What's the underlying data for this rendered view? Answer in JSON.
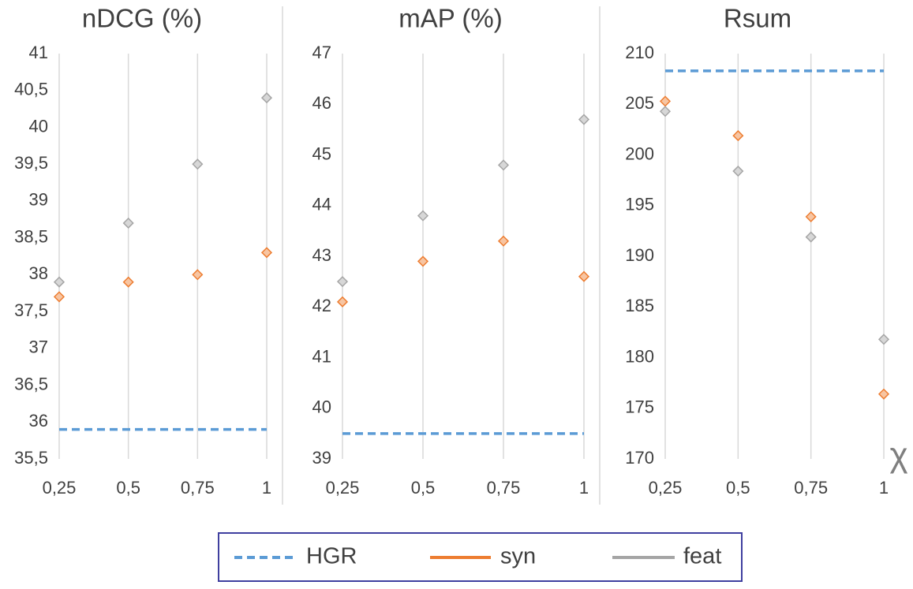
{
  "chart_data": [
    {
      "type": "scatter",
      "title": "nDCG (%)",
      "x": [
        0.25,
        0.5,
        0.75,
        1
      ],
      "xlim": [
        0.25,
        1
      ],
      "xticks": [
        {
          "value": 0.25,
          "label": "0,25"
        },
        {
          "value": 0.5,
          "label": "0,5"
        },
        {
          "value": 0.75,
          "label": "0,75"
        },
        1
      ],
      "ylim": [
        35.5,
        41
      ],
      "yticks": [
        {
          "value": 35.5,
          "label": "35,5"
        },
        36,
        {
          "value": 36.5,
          "label": "36,5"
        },
        37,
        {
          "value": 37.5,
          "label": "37,5"
        },
        38,
        {
          "value": 38.5,
          "label": "38,5"
        },
        39,
        {
          "value": 39.5,
          "label": "39,5"
        },
        40,
        {
          "value": 40.5,
          "label": "40,5"
        },
        41
      ],
      "grid": true,
      "series": [
        {
          "name": "HGR",
          "color": "#5b9bd5",
          "dashed": true,
          "values": [
            35.9,
            35.9,
            35.9,
            35.9
          ]
        },
        {
          "name": "syn",
          "color": "#ed7d31",
          "values": [
            37.7,
            37.9,
            38.0,
            38.3
          ]
        },
        {
          "name": "feat",
          "color": "#a5a5a5",
          "values": [
            37.9,
            38.7,
            39.5,
            40.4
          ]
        }
      ]
    },
    {
      "type": "scatter",
      "title": "mAP (%)",
      "x": [
        0.25,
        0.5,
        0.75,
        1
      ],
      "xlim": [
        0.25,
        1
      ],
      "xticks": [
        {
          "value": 0.25,
          "label": "0,25"
        },
        {
          "value": 0.5,
          "label": "0,5"
        },
        {
          "value": 0.75,
          "label": "0,75"
        },
        1
      ],
      "ylim": [
        39,
        47
      ],
      "yticks": [
        39,
        40,
        41,
        42,
        43,
        44,
        45,
        46,
        47
      ],
      "grid": true,
      "series": [
        {
          "name": "HGR",
          "color": "#5b9bd5",
          "dashed": true,
          "values": [
            39.5,
            39.5,
            39.5,
            39.5
          ]
        },
        {
          "name": "syn",
          "color": "#ed7d31",
          "values": [
            42.1,
            42.9,
            43.3,
            42.6
          ]
        },
        {
          "name": "feat",
          "color": "#a5a5a5",
          "values": [
            42.5,
            43.8,
            44.8,
            45.7
          ]
        }
      ]
    },
    {
      "type": "scatter",
      "title": "Rsum",
      "x_label": "χ",
      "x": [
        0.25,
        0.5,
        0.75,
        1
      ],
      "xlim": [
        0.25,
        1
      ],
      "xticks": [
        {
          "value": 0.25,
          "label": "0,25"
        },
        {
          "value": 0.5,
          "label": "0,5"
        },
        {
          "value": 0.75,
          "label": "0,75"
        },
        1
      ],
      "ylim": [
        170,
        210
      ],
      "yticks": [
        170,
        175,
        180,
        185,
        190,
        195,
        200,
        205,
        210
      ],
      "grid": true,
      "series": [
        {
          "name": "HGR",
          "color": "#5b9bd5",
          "dashed": true,
          "values": [
            208.3,
            208.3,
            208.3,
            208.3
          ]
        },
        {
          "name": "syn",
          "color": "#ed7d31",
          "values": [
            205.3,
            201.9,
            193.9,
            176.4
          ]
        },
        {
          "name": "feat",
          "color": "#a5a5a5",
          "values": [
            204.3,
            198.4,
            191.9,
            181.8
          ]
        }
      ]
    }
  ]
}
